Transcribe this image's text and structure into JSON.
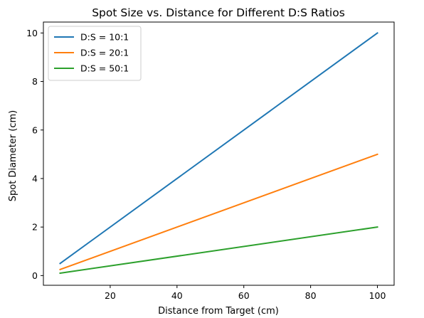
{
  "chart_data": {
    "type": "line",
    "title": "Spot Size vs. Distance for Different D:S Ratios",
    "xlabel": "Distance from Target (cm)",
    "ylabel": "Spot Diameter (cm)",
    "xlim": [
      0,
      105
    ],
    "ylim": [
      -0.4,
      10.45
    ],
    "xticks": [
      20,
      40,
      60,
      80,
      100
    ],
    "yticks": [
      0,
      2,
      4,
      6,
      8,
      10
    ],
    "grid": false,
    "legend_position": "top-left",
    "x": [
      5,
      100
    ],
    "series": [
      {
        "name": "D:S = 10:1",
        "color": "#1f77b4",
        "values": [
          0.5,
          10.0
        ]
      },
      {
        "name": "D:S = 20:1",
        "color": "#ff7f0e",
        "values": [
          0.25,
          5.0
        ]
      },
      {
        "name": "D:S = 50:1",
        "color": "#2ca02c",
        "values": [
          0.1,
          2.0
        ]
      }
    ]
  }
}
